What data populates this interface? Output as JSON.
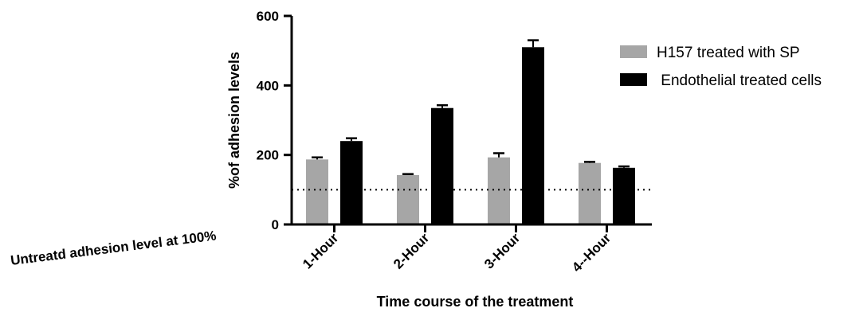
{
  "chart_data": {
    "type": "bar",
    "categories": [
      "1-Hour",
      "2-Hour",
      "3-Hour",
      "4--Hour"
    ],
    "series": [
      {
        "name": "H157 treated with SP",
        "color": "#a6a6a6",
        "values": [
          187,
          142,
          193,
          177
        ],
        "errors": [
          6,
          3,
          12,
          3
        ]
      },
      {
        "name": " Endothelial treated cells",
        "color": "#000000",
        "values": [
          240,
          335,
          510,
          163
        ],
        "errors": [
          8,
          8,
          20,
          4
        ]
      }
    ],
    "xlabel": "Time course of the treatment",
    "ylabel": "%of adhesion levels",
    "ylim": [
      0,
      600
    ],
    "yticks": [
      "0",
      "200",
      "400",
      "600"
    ],
    "reference_line": {
      "value": 100,
      "label": "Untreatd adhesion level at 100%",
      "style": "dotted"
    },
    "grid": false,
    "legend_position": "right"
  }
}
